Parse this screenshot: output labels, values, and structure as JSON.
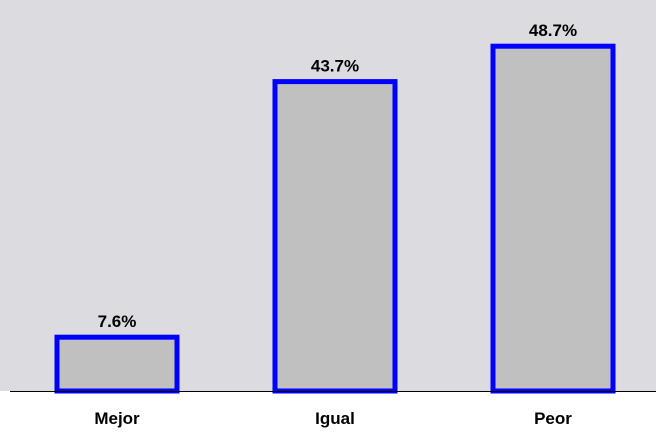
{
  "chart_data": {
    "type": "bar",
    "categories": [
      "Mejor",
      "Igual",
      "Peor"
    ],
    "values": [
      7.6,
      43.7,
      48.7
    ],
    "value_labels": [
      "7.6%",
      "43.7%",
      "48.7%"
    ],
    "title": "",
    "xlabel": "",
    "ylabel": "",
    "ylim": [
      0,
      55
    ],
    "grid": false,
    "legend": "none"
  },
  "colors": {
    "plot_background": "#dcdce0",
    "bar_fill": "#c0c0c0",
    "bar_border": "#0000ff",
    "axis_line": "#000000"
  }
}
